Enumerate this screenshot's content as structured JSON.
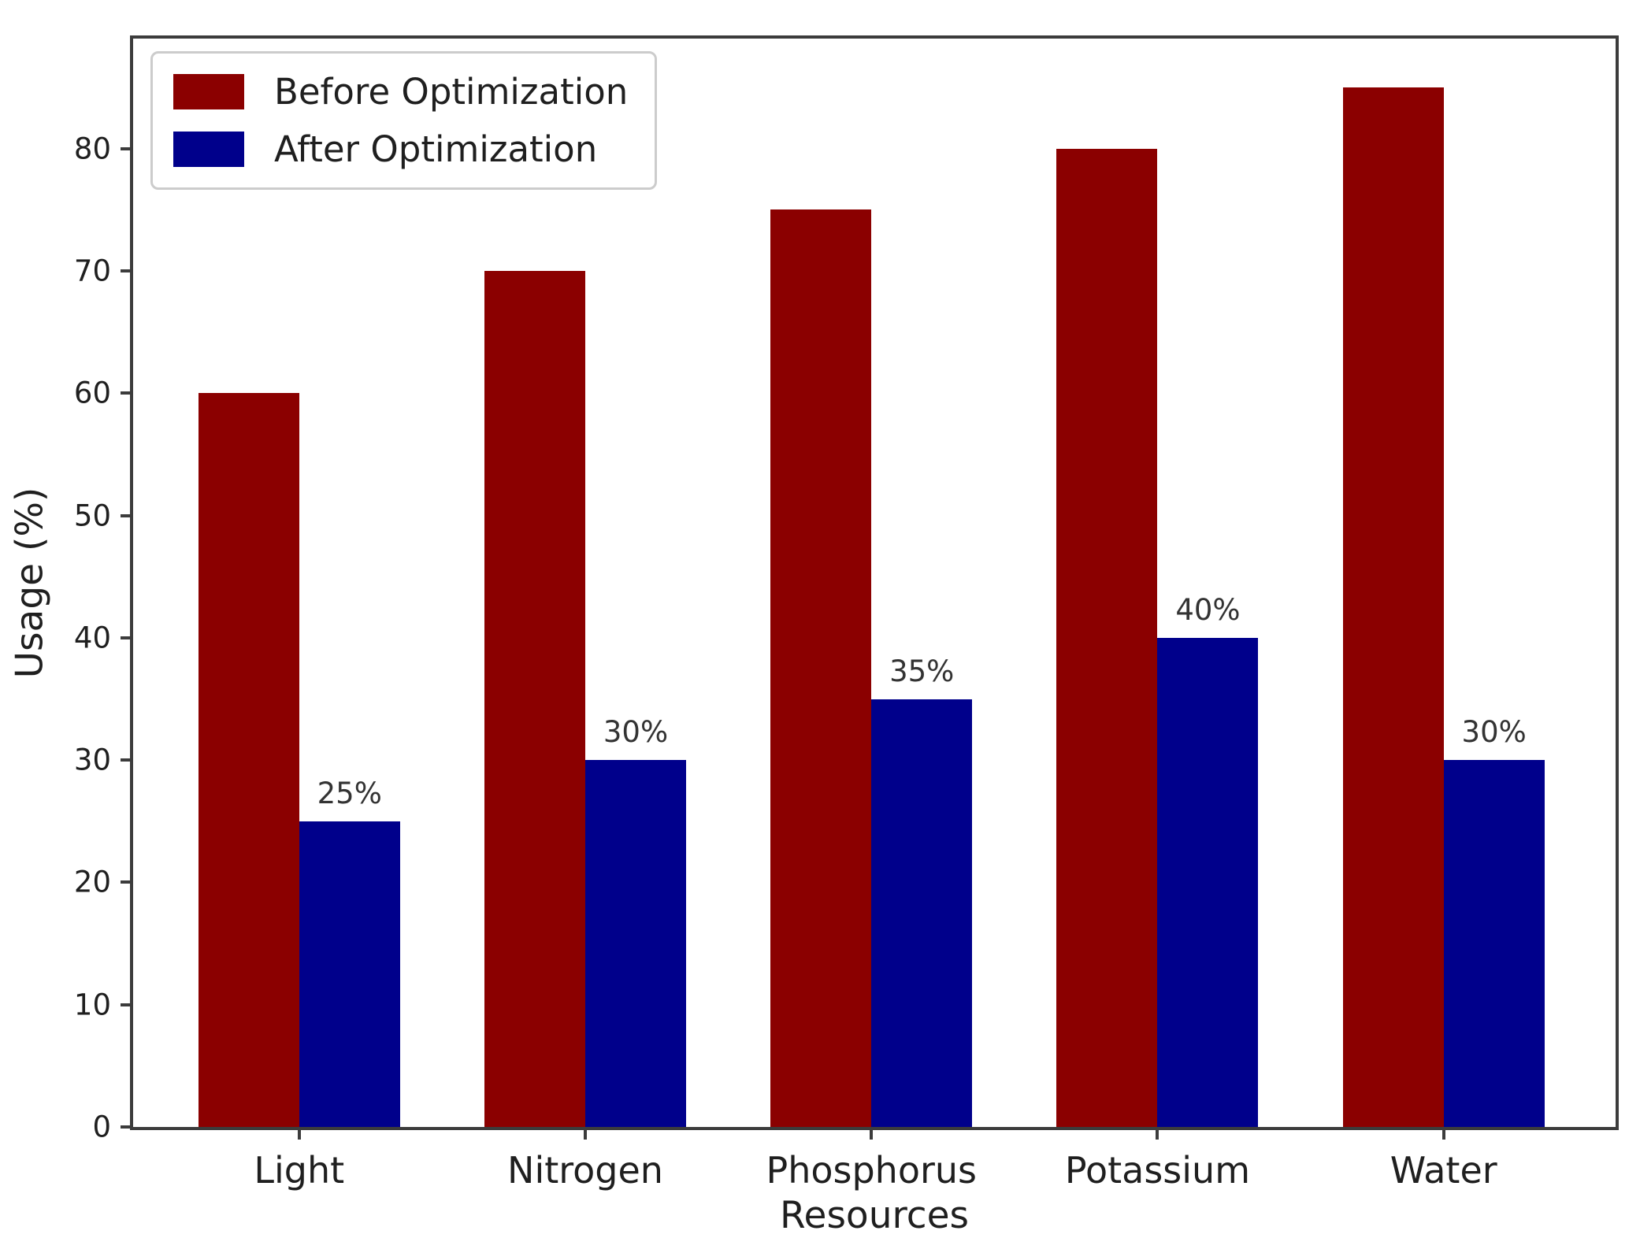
{
  "chart_data": {
    "type": "bar",
    "title": "",
    "xlabel": "Resources",
    "ylabel": "Usage (%)",
    "categories": [
      "Light",
      "Nitrogen",
      "Phosphorus",
      "Potassium",
      "Water"
    ],
    "series": [
      {
        "name": "Before Optimization",
        "color": "#8B0000",
        "values": [
          60,
          70,
          75,
          80,
          85
        ]
      },
      {
        "name": "After Optimization",
        "color": "#00008B",
        "values": [
          25,
          30,
          35,
          40,
          30
        ]
      }
    ],
    "bar_value_labels": {
      "series": "After Optimization",
      "labels": [
        "25%",
        "30%",
        "35%",
        "40%",
        "30%"
      ]
    },
    "yticks": [
      0,
      10,
      20,
      30,
      40,
      50,
      60,
      70,
      80
    ],
    "ylim": [
      0,
      89
    ],
    "legend_position": "upper left",
    "grid": false,
    "colors": {
      "before_bar": "#8B0000",
      "after_bar": "#00008B",
      "axis": "#3c3c3c",
      "text": "#1f1f1f",
      "legend_border": "#cccccc",
      "background": "#ffffff"
    }
  }
}
